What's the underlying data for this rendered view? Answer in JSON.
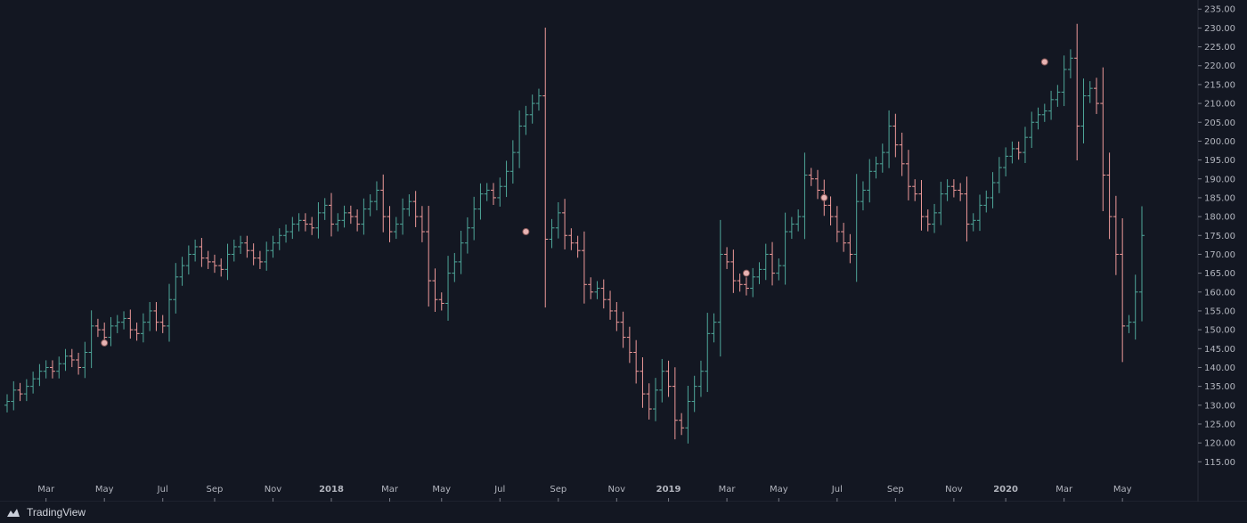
{
  "chart_data": {
    "type": "ohlc-bar",
    "colors": {
      "background": "#131722",
      "up": "#4fa79a",
      "down": "#ef9a9a",
      "axis_text": "#b2b5be",
      "dividend": "#e8b4b4"
    },
    "y_axis": {
      "ticks": [
        "235.00",
        "230.00",
        "225.00",
        "220.00",
        "215.00",
        "210.00",
        "205.00",
        "200.00",
        "195.00",
        "190.00",
        "185.00",
        "180.00",
        "175.00",
        "170.00",
        "165.00",
        "160.00",
        "155.00",
        "150.00",
        "145.00",
        "140.00",
        "135.00",
        "130.00",
        "125.00",
        "120.00",
        "115.00"
      ],
      "ylim": [
        112,
        236
      ]
    },
    "x_axis": {
      "ticks": [
        {
          "label": "Mar",
          "bold": false
        },
        {
          "label": "May",
          "bold": false
        },
        {
          "label": "Jul",
          "bold": false
        },
        {
          "label": "Sep",
          "bold": false
        },
        {
          "label": "Nov",
          "bold": false
        },
        {
          "label": "2018",
          "bold": true
        },
        {
          "label": "Mar",
          "bold": false
        },
        {
          "label": "May",
          "bold": false
        },
        {
          "label": "Jul",
          "bold": false
        },
        {
          "label": "Sep",
          "bold": false
        },
        {
          "label": "Nov",
          "bold": false
        },
        {
          "label": "2019",
          "bold": true
        },
        {
          "label": "Mar",
          "bold": false
        },
        {
          "label": "May",
          "bold": false
        },
        {
          "label": "Jul",
          "bold": false
        },
        {
          "label": "Sep",
          "bold": false
        },
        {
          "label": "Nov",
          "bold": false
        },
        {
          "label": "2020",
          "bold": true
        },
        {
          "label": "Mar",
          "bold": false
        },
        {
          "label": "May",
          "bold": false
        }
      ],
      "tick_weeks": [
        6,
        15,
        24,
        32,
        41,
        50,
        59,
        67,
        76,
        85,
        94,
        102,
        111,
        119,
        128,
        137,
        146,
        154,
        163,
        172
      ]
    },
    "weekly_close": [
      131,
      134,
      133,
      135,
      137,
      139,
      140,
      139,
      141,
      143,
      142,
      140,
      144,
      151,
      150,
      148,
      151,
      152,
      153,
      150,
      149,
      152,
      155,
      152,
      151,
      158,
      164,
      167,
      170,
      172,
      169,
      168,
      167,
      166,
      170,
      172,
      173,
      171,
      169,
      168,
      171,
      173,
      175,
      176,
      178,
      179,
      178,
      177,
      181,
      183,
      178,
      179,
      181,
      180,
      178,
      182,
      184,
      187,
      180,
      176,
      178,
      182,
      184,
      180,
      176,
      163,
      158,
      157,
      165,
      168,
      173,
      177,
      182,
      186,
      187,
      185,
      188,
      192,
      197,
      204,
      207,
      210,
      212,
      174,
      177,
      181,
      175,
      173,
      171,
      162,
      160,
      161,
      158,
      155,
      152,
      148,
      144,
      139,
      133,
      129,
      134,
      139,
      135,
      126,
      124,
      131,
      135,
      139,
      149,
      152,
      170,
      168,
      163,
      162,
      161,
      164,
      166,
      170,
      165,
      167,
      176,
      178,
      180,
      191,
      190,
      187,
      183,
      180,
      176,
      173,
      170,
      184,
      187,
      192,
      194,
      197,
      204,
      199,
      194,
      188,
      186,
      180,
      178,
      181,
      186,
      188,
      187,
      186,
      178,
      179,
      183,
      185,
      189,
      193,
      196,
      198,
      197,
      201,
      205,
      207,
      208,
      211,
      213,
      219,
      222,
      204,
      212,
      214,
      210,
      191,
      180,
      170,
      151,
      152,
      160,
      175
    ],
    "dividend_markers": [
      {
        "week": 15,
        "price": 146.5
      },
      {
        "week": 80,
        "price": 176
      },
      {
        "week": 114,
        "price": 165
      },
      {
        "week": 126,
        "price": 185
      },
      {
        "week": 160,
        "price": 221
      }
    ]
  },
  "branding": {
    "label": "TradingView",
    "logo": "tradingview-logo-icon"
  }
}
